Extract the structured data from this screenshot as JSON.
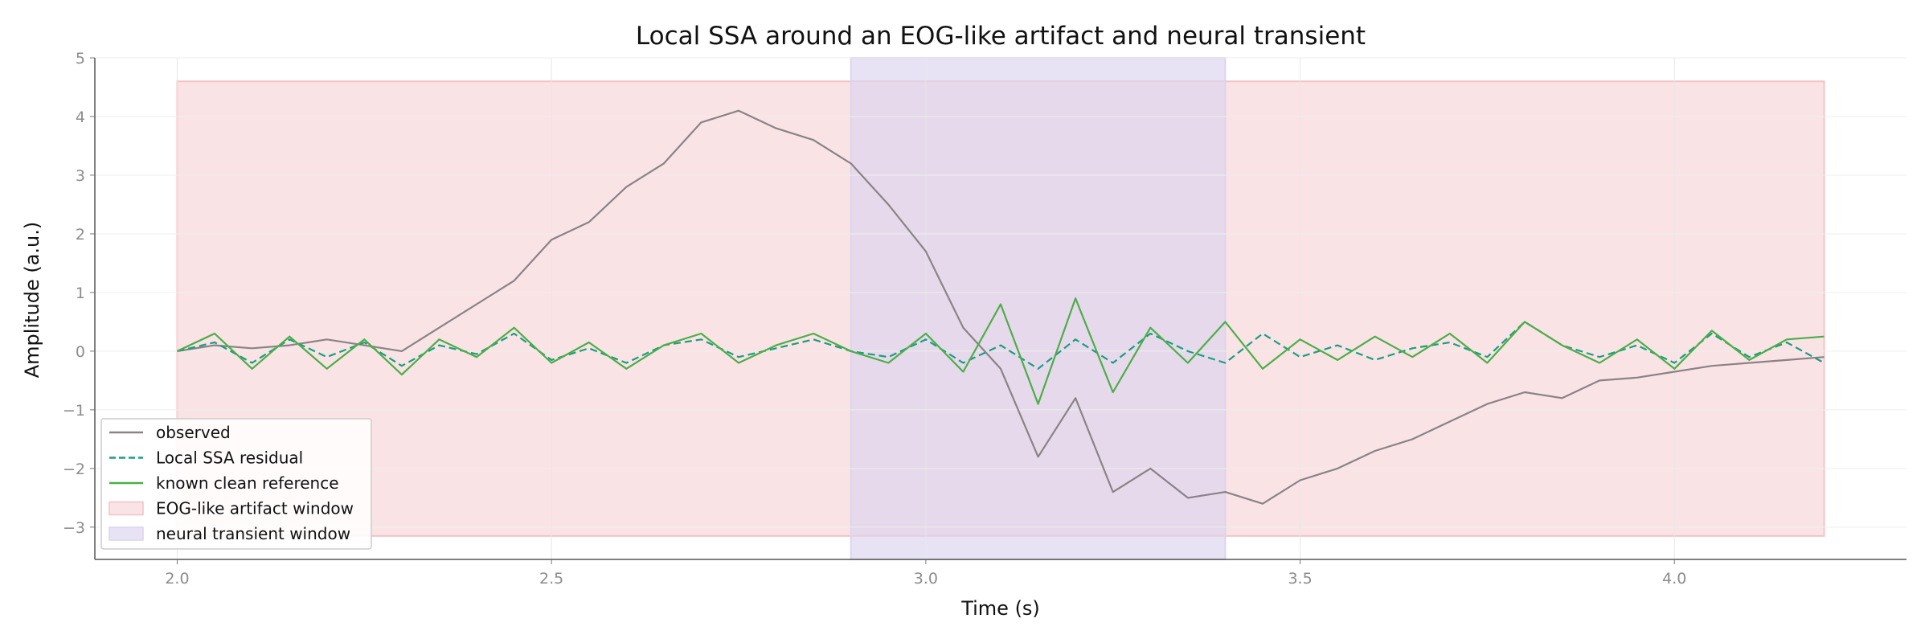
{
  "chart_data": {
    "type": "line",
    "title": "Local SSA around an EOG-like artifact and neural transient",
    "xlabel": "Time (s)",
    "ylabel": "Amplitude (a.u.)",
    "xlim": [
      1.89,
      4.31
    ],
    "ylim": [
      -3.55,
      5.0
    ],
    "x_ticks": [
      2.0,
      2.5,
      3.0,
      3.5,
      4.0
    ],
    "x_tick_labels": [
      "2.0",
      "2.5",
      "3.0",
      "3.5",
      "4.0"
    ],
    "y_ticks": [
      -3,
      -2,
      -1,
      0,
      1,
      2,
      3,
      4,
      5
    ],
    "y_tick_labels": [
      "−3",
      "−2",
      "−1",
      "0",
      "1",
      "2",
      "3",
      "4",
      "5"
    ],
    "grid": true,
    "legend_position": "lower-left",
    "shaded_regions": [
      {
        "name": "EOG-like artifact window",
        "x": [
          2.0,
          4.2
        ],
        "y": [
          -3.15,
          4.6
        ],
        "color": "#f4c2c5"
      },
      {
        "name": "neural transient window",
        "x": [
          2.9,
          3.4
        ],
        "y": [
          -3.55,
          5.0
        ],
        "color": "#dcd4ee"
      }
    ],
    "series": [
      {
        "name": "observed",
        "color": "#8a8386",
        "style": "solid",
        "x": [
          2.0,
          2.05,
          2.1,
          2.15,
          2.2,
          2.25,
          2.3,
          2.35,
          2.4,
          2.45,
          2.5,
          2.55,
          2.6,
          2.65,
          2.7,
          2.75,
          2.8,
          2.85,
          2.9,
          2.95,
          3.0,
          3.05,
          3.1,
          3.15,
          3.2,
          3.25,
          3.3,
          3.35,
          3.4,
          3.45,
          3.5,
          3.55,
          3.6,
          3.65,
          3.7,
          3.75,
          3.8,
          3.85,
          3.9,
          3.95,
          4.0,
          4.05,
          4.1,
          4.15,
          4.2
        ],
        "values": [
          0.0,
          0.1,
          0.05,
          0.1,
          0.2,
          0.1,
          0.0,
          0.4,
          0.8,
          1.2,
          1.9,
          2.2,
          2.8,
          3.2,
          3.9,
          4.1,
          3.8,
          3.6,
          3.2,
          2.5,
          1.7,
          0.4,
          -0.3,
          -1.8,
          -0.8,
          -2.4,
          -2.0,
          -2.5,
          -2.4,
          -2.6,
          -2.2,
          -2.0,
          -1.7,
          -1.5,
          -1.2,
          -0.9,
          -0.7,
          -0.8,
          -0.5,
          -0.45,
          -0.35,
          -0.25,
          -0.2,
          -0.15,
          -0.1
        ]
      },
      {
        "name": "Local SSA residual",
        "color": "#1a9e84",
        "style": "dashed",
        "x": [
          2.0,
          2.05,
          2.1,
          2.15,
          2.2,
          2.25,
          2.3,
          2.35,
          2.4,
          2.45,
          2.5,
          2.55,
          2.6,
          2.65,
          2.7,
          2.75,
          2.8,
          2.85,
          2.9,
          2.95,
          3.0,
          3.05,
          3.1,
          3.15,
          3.2,
          3.25,
          3.3,
          3.35,
          3.4,
          3.45,
          3.5,
          3.55,
          3.6,
          3.65,
          3.7,
          3.75,
          3.8,
          3.85,
          3.9,
          3.95,
          4.0,
          4.05,
          4.1,
          4.15,
          4.2
        ],
        "values": [
          0.0,
          0.15,
          -0.2,
          0.2,
          -0.1,
          0.15,
          -0.25,
          0.1,
          -0.05,
          0.3,
          -0.15,
          0.05,
          -0.2,
          0.1,
          0.2,
          -0.1,
          0.05,
          0.2,
          0.0,
          -0.1,
          0.2,
          -0.2,
          0.1,
          -0.3,
          0.2,
          -0.2,
          0.3,
          0.0,
          -0.2,
          0.3,
          -0.1,
          0.1,
          -0.15,
          0.05,
          0.15,
          -0.1,
          0.5,
          0.1,
          -0.1,
          0.1,
          -0.2,
          0.3,
          -0.1,
          0.15,
          -0.2
        ]
      },
      {
        "name": "known clean reference",
        "color": "#4cae47",
        "style": "solid",
        "x": [
          2.0,
          2.05,
          2.1,
          2.15,
          2.2,
          2.25,
          2.3,
          2.35,
          2.4,
          2.45,
          2.5,
          2.55,
          2.6,
          2.65,
          2.7,
          2.75,
          2.8,
          2.85,
          2.9,
          2.95,
          3.0,
          3.05,
          3.1,
          3.15,
          3.2,
          3.25,
          3.3,
          3.35,
          3.4,
          3.45,
          3.5,
          3.55,
          3.6,
          3.65,
          3.7,
          3.75,
          3.8,
          3.85,
          3.9,
          3.95,
          4.0,
          4.05,
          4.1,
          4.15,
          4.2
        ],
        "values": [
          0.0,
          0.3,
          -0.3,
          0.25,
          -0.3,
          0.2,
          -0.4,
          0.2,
          -0.1,
          0.4,
          -0.2,
          0.15,
          -0.3,
          0.1,
          0.3,
          -0.2,
          0.1,
          0.3,
          0.0,
          -0.2,
          0.3,
          -0.35,
          0.8,
          -0.9,
          0.9,
          -0.7,
          0.4,
          -0.2,
          0.5,
          -0.3,
          0.2,
          -0.15,
          0.25,
          -0.1,
          0.3,
          -0.2,
          0.5,
          0.1,
          -0.2,
          0.2,
          -0.3,
          0.35,
          -0.15,
          0.2,
          0.25
        ]
      }
    ]
  }
}
